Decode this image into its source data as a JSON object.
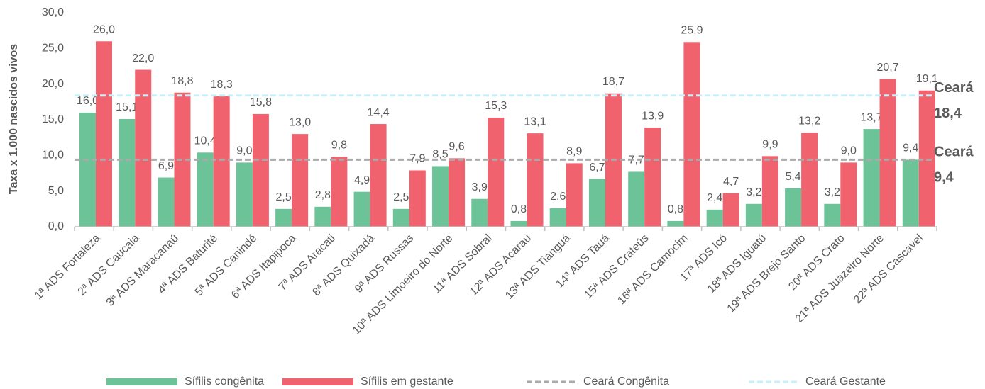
{
  "chart_data": {
    "type": "bar",
    "y_axis_label": "Taxa x 1.000 nascidos vivos",
    "categories": [
      "1ª ADS Fortaleza",
      "2ª ADS Caucaia",
      "3ª ADS Maracanaú",
      "4ª ADS Baturité",
      "5ª ADS Canindé",
      "6ª ADS Itapipoca",
      "7ª ADS Aracati",
      "8ª ADS Quixadá",
      "9ª ADS Russas",
      "10ª ADS Limoeiro do Norte",
      "11ª ADS Sobral",
      "12ª ADS Acaraú",
      "13ª ADS Tianguá",
      "14ª ADS Tauá",
      "15ª ADS Crateús",
      "16ª ADS Camocim",
      "17ª ADS Icó",
      "18ª ADS Iguatú",
      "19ª ADS Brejo Santo",
      "20ª ADS Crato",
      "21ª ADS Juazeiro Norte",
      "22ª ADS Cascavel"
    ],
    "series": [
      {
        "name": "Sífilis congênita",
        "color": "#6cc398",
        "values": [
          16.0,
          15.1,
          6.9,
          10.4,
          9.0,
          2.5,
          2.8,
          4.9,
          2.5,
          8.5,
          3.9,
          0.8,
          2.6,
          6.7,
          7.7,
          0.8,
          2.4,
          3.2,
          5.4,
          3.2,
          13.7,
          9.4
        ],
        "value_labels": [
          "16,0",
          "15,1",
          "6,9",
          "10,4",
          "9,0",
          "2,5",
          "2,8",
          "4,9",
          "2,5",
          "8,5",
          "3,9",
          "0,8",
          "2,6",
          "6,7",
          "7,7",
          "0,8",
          "2,4",
          "3,2",
          "5,4",
          "3,2",
          "13,7",
          "9,4"
        ]
      },
      {
        "name": "Sífilis em gestante",
        "color": "#f0626e",
        "values": [
          26.0,
          22.0,
          18.8,
          18.3,
          15.8,
          13.0,
          9.8,
          14.4,
          7.9,
          9.6,
          15.3,
          13.1,
          8.9,
          18.7,
          13.9,
          25.9,
          4.7,
          9.9,
          13.2,
          9.0,
          20.7,
          19.1
        ],
        "value_labels": [
          "26,0",
          "22,0",
          "18,8",
          "18,3",
          "15,8",
          "13,0",
          "9,8",
          "14,4",
          "7,9",
          "9,6",
          "15,3",
          "13,1",
          "8,9",
          "18,7",
          "13,9",
          "25,9",
          "4,7",
          "9,9",
          "13,2",
          "9,0",
          "20,7",
          "19,1"
        ]
      }
    ],
    "reference_lines": [
      {
        "name": "Ceará Congênita",
        "value": 9.4,
        "color": "#aaaaaa",
        "label_lines": [
          "Ceará",
          "9,4"
        ]
      },
      {
        "name": "Ceará Gestante",
        "value": 18.4,
        "color": "#c5f1fa",
        "label_lines": [
          "Ceará",
          "18,4"
        ]
      }
    ],
    "ylim": [
      0,
      30
    ],
    "yticks": [
      {
        "value": 0,
        "label": "0,0"
      },
      {
        "value": 5,
        "label": "5,0"
      },
      {
        "value": 10,
        "label": "10,0"
      },
      {
        "value": 15,
        "label": "15,0"
      },
      {
        "value": 20,
        "label": "20,0"
      },
      {
        "value": 25,
        "label": "25,0"
      },
      {
        "value": 30,
        "label": "30,0"
      }
    ],
    "grid": false,
    "legend": "bottom"
  }
}
